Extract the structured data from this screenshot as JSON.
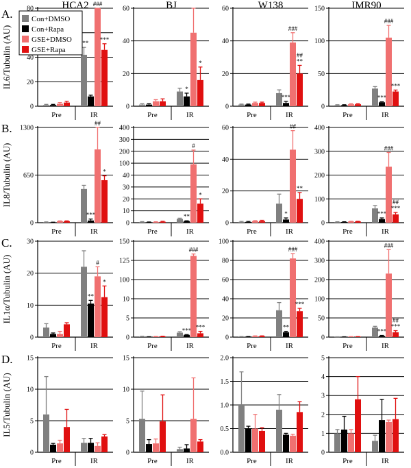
{
  "chart_data": {
    "type": "bar",
    "columns": [
      "HCA2",
      "BJ",
      "W138",
      "IMR90"
    ],
    "row_letters": [
      "A.",
      "B.",
      "C.",
      "D."
    ],
    "ylabels": [
      "IL6/Tubulin (AU)",
      "IL8/Tubulin (AU)",
      "IL1α/Tubulin (AU)",
      "IL5/Tubulin (AU)"
    ],
    "categories": [
      "Pre",
      "IR"
    ],
    "legend": [
      {
        "name": "Con+DMSO",
        "color": "#808080"
      },
      {
        "name": "Con+Rapa",
        "color": "#000000"
      },
      {
        "name": "GSE+DMSO",
        "color": "#f07070"
      },
      {
        "name": "GSE+Rapa",
        "color": "#e01010"
      }
    ],
    "panels": [
      {
        "row": 0,
        "col": 0,
        "ticks": [
          "0",
          "20",
          "40",
          "60",
          "80"
        ],
        "ylim": [
          0,
          80
        ],
        "values": [
          [
            1,
            1,
            2,
            3
          ],
          [
            42,
            8,
            95,
            46
          ]
        ],
        "errors": [
          [
            0.5,
            0.5,
            1,
            1
          ],
          [
            6,
            1,
            12,
            5
          ]
        ],
        "annotations": [
          [
            "",
            "",
            "",
            ""
          ],
          [
            "***",
            "",
            "###",
            "***"
          ]
        ]
      },
      {
        "row": 0,
        "col": 1,
        "ticks": [
          "0",
          "20",
          "40",
          "60"
        ],
        "ylim": [
          0,
          60
        ],
        "values": [
          [
            1,
            1,
            3,
            3
          ],
          [
            9,
            6,
            45,
            16
          ]
        ],
        "errors": [
          [
            0.5,
            0.5,
            1,
            1.5
          ],
          [
            2,
            2,
            20,
            8
          ]
        ],
        "annotations": [
          [
            "",
            "",
            "",
            ""
          ],
          [
            "",
            "*",
            "",
            "*"
          ]
        ]
      },
      {
        "row": 0,
        "col": 2,
        "ticks": [
          "0",
          "20",
          "40",
          "60"
        ],
        "ylim": [
          0,
          60
        ],
        "values": [
          [
            1,
            1,
            2,
            2
          ],
          [
            8,
            2,
            39,
            20
          ]
        ],
        "errors": [
          [
            0.3,
            0.3,
            0.5,
            0.5
          ],
          [
            2,
            1,
            6,
            5
          ]
        ],
        "annotations": [
          [
            "",
            "",
            "",
            ""
          ],
          [
            "",
            "***",
            "###",
            "##\n**"
          ]
        ]
      },
      {
        "row": 0,
        "col": 3,
        "ticks": [
          "0",
          "50",
          "100",
          "150"
        ],
        "ylim": [
          0,
          200
        ],
        "values": [
          [
            2,
            2,
            4,
            4
          ],
          [
            36,
            8,
            140,
            30
          ]
        ],
        "errors": [
          [
            1,
            1,
            1,
            1
          ],
          [
            4,
            1,
            25,
            3
          ]
        ],
        "annotations": [
          [
            "",
            "",
            "",
            ""
          ],
          [
            "",
            "***",
            "###",
            "***"
          ]
        ]
      },
      {
        "row": 1,
        "col": 0,
        "ticks": [
          "0",
          "650",
          "1300"
        ],
        "ylim": [
          0,
          1300
        ],
        "values": [
          [
            8,
            5,
            20,
            20
          ],
          [
            460,
            30,
            1000,
            580
          ]
        ],
        "errors": [
          [
            3,
            2,
            5,
            5
          ],
          [
            50,
            20,
            300,
            60
          ]
        ],
        "annotations": [
          [
            "",
            "",
            "",
            ""
          ],
          [
            "",
            "***",
            "##",
            "*"
          ]
        ]
      },
      {
        "row": 1,
        "col": 1,
        "ticks": [
          "0",
          "10",
          "20",
          "30",
          "40",
          "100",
          "200",
          "300",
          "400"
        ],
        "ylim": [
          0,
          400
        ],
        "values": [
          [
            3,
            2,
            3,
            4
          ],
          [
            16,
            7,
            245,
            80
          ]
        ],
        "errors": [
          [
            1.5,
            1,
            1,
            2
          ],
          [
            3,
            1,
            60,
            20
          ]
        ],
        "annotations": [
          [
            "",
            "",
            "",
            ""
          ],
          [
            "",
            "**",
            "#",
            "*"
          ]
        ]
      },
      {
        "row": 1,
        "col": 2,
        "ticks": [
          "0",
          "20",
          "40",
          "60"
        ],
        "ylim": [
          0,
          60
        ],
        "values": [
          [
            0.5,
            0.5,
            1,
            1
          ],
          [
            12,
            2,
            46,
            15
          ]
        ],
        "errors": [
          [
            0.3,
            0.3,
            0.3,
            0.5
          ],
          [
            6,
            1,
            12,
            4
          ]
        ],
        "annotations": [
          [
            "",
            "",
            "",
            ""
          ],
          [
            "",
            "*",
            "##",
            "**"
          ]
        ]
      },
      {
        "row": 1,
        "col": 3,
        "ticks": [
          "0",
          "100",
          "200",
          "300",
          "400"
        ],
        "ylim": [
          0,
          400
        ],
        "values": [
          [
            3,
            3,
            5,
            5
          ],
          [
            60,
            15,
            235,
            35
          ]
        ],
        "errors": [
          [
            1,
            1,
            1,
            1
          ],
          [
            12,
            5,
            60,
            8
          ]
        ],
        "annotations": [
          [
            "",
            "",
            "",
            ""
          ],
          [
            "",
            "***",
            "###",
            "##\n***"
          ]
        ]
      },
      {
        "row": 2,
        "col": 0,
        "ticks": [
          "0",
          "10",
          "20",
          "30"
        ],
        "ylim": [
          0,
          30
        ],
        "values": [
          [
            3,
            1,
            1,
            4
          ],
          [
            22,
            10.5,
            19,
            12.5
          ]
        ],
        "errors": [
          [
            1.2,
            0.3,
            0.8,
            0.5
          ],
          [
            5,
            1,
            3,
            3.5
          ]
        ],
        "annotations": [
          [
            "",
            "",
            "",
            ""
          ],
          [
            "",
            "**",
            "#",
            "*"
          ]
        ]
      },
      {
        "row": 2,
        "col": 1,
        "ticks": [
          "0",
          "5",
          "10",
          "100",
          "125",
          "150"
        ],
        "ylim": [
          0,
          150
        ],
        "values": [
          [
            1,
            0.5,
            1,
            1.2
          ],
          [
            7,
            3.5,
            127,
            6
          ]
        ],
        "errors": [
          [
            0.5,
            0.2,
            0.3,
            0.3
          ],
          [
            1.5,
            0.5,
            3,
            3
          ]
        ],
        "annotations": [
          [
            "",
            "",
            "",
            ""
          ],
          [
            "",
            "***",
            "###",
            "***"
          ]
        ]
      },
      {
        "row": 2,
        "col": 2,
        "ticks": [
          "0",
          "20",
          "40",
          "60",
          "80",
          "100"
        ],
        "ylim": [
          0,
          100
        ],
        "values": [
          [
            0.5,
            0.5,
            1,
            1
          ],
          [
            28,
            5,
            82,
            27
          ]
        ],
        "errors": [
          [
            0.2,
            0.2,
            0.3,
            0.3
          ],
          [
            8,
            1,
            5,
            3
          ]
        ],
        "annotations": [
          [
            "",
            "",
            "",
            ""
          ],
          [
            "",
            "**",
            "###",
            "***"
          ]
        ]
      },
      {
        "row": 2,
        "col": 3,
        "ticks": [
          "0",
          "50",
          "100",
          "200",
          "300",
          "400"
        ],
        "ylim": [
          0,
          400
        ],
        "values": [
          [
            1,
            1,
            2,
            2
          ],
          [
            40,
            5,
            265,
            20
          ]
        ],
        "errors": [
          [
            0.5,
            0.5,
            0.5,
            0.5
          ],
          [
            5,
            2,
            100,
            7
          ]
        ],
        "annotations": [
          [
            "",
            "",
            "",
            ""
          ],
          [
            "",
            "***",
            "###",
            "##\n***"
          ]
        ]
      },
      {
        "row": 3,
        "col": 0,
        "ticks": [
          "0",
          "5",
          "10",
          "15"
        ],
        "ylim": [
          0,
          15
        ],
        "values": [
          [
            6,
            1.2,
            1.4,
            4
          ],
          [
            1.5,
            1.5,
            1,
            2.5
          ]
        ],
        "errors": [
          [
            6,
            0.2,
            0.5,
            2.8
          ],
          [
            0.7,
            0.7,
            0.5,
            0.3
          ]
        ],
        "annotations": [
          [
            "",
            "",
            "",
            ""
          ],
          [
            "",
            "",
            "",
            ""
          ]
        ]
      },
      {
        "row": 3,
        "col": 1,
        "ticks": [
          "0",
          "5",
          "10",
          "15"
        ],
        "ylim": [
          0,
          15
        ],
        "values": [
          [
            5.3,
            1.3,
            1.4,
            4.9
          ],
          [
            0.5,
            0.6,
            5.3,
            1.7
          ]
        ],
        "errors": [
          [
            4.4,
            0.7,
            0.7,
            4.2
          ],
          [
            0.3,
            0.6,
            6.5,
            0.3
          ]
        ],
        "annotations": [
          [
            "",
            "",
            "",
            ""
          ],
          [
            "",
            "",
            "",
            ""
          ]
        ]
      },
      {
        "row": 3,
        "col": 2,
        "ticks": [
          "0.0",
          "0.5",
          "1.0",
          "1.5",
          "2.0"
        ],
        "ylim": [
          0,
          2
        ],
        "values": [
          [
            1.0,
            0.5,
            0.5,
            0.45
          ],
          [
            0.9,
            0.37,
            0.35,
            0.85
          ]
        ],
        "errors": [
          [
            0.7,
            0.05,
            0.3,
            0.07
          ],
          [
            0.32,
            0.03,
            0.03,
            0.22
          ]
        ],
        "annotations": [
          [
            "",
            "",
            "",
            ""
          ],
          [
            "",
            "",
            "",
            ""
          ]
        ]
      },
      {
        "row": 3,
        "col": 3,
        "ticks": [
          "0",
          "1",
          "2",
          "3",
          "4",
          "5"
        ],
        "ylim": [
          0,
          5
        ],
        "values": [
          [
            1,
            1.2,
            1.0,
            2.8
          ],
          [
            0.6,
            1.7,
            1.6,
            1.75
          ]
        ],
        "errors": [
          [
            0.2,
            0.7,
            0.2,
            1.2
          ],
          [
            0.3,
            1.1,
            0.1,
            1.1
          ]
        ],
        "annotations": [
          [
            "",
            "",
            "",
            ""
          ],
          [
            "",
            "",
            "",
            ""
          ]
        ]
      }
    ]
  }
}
